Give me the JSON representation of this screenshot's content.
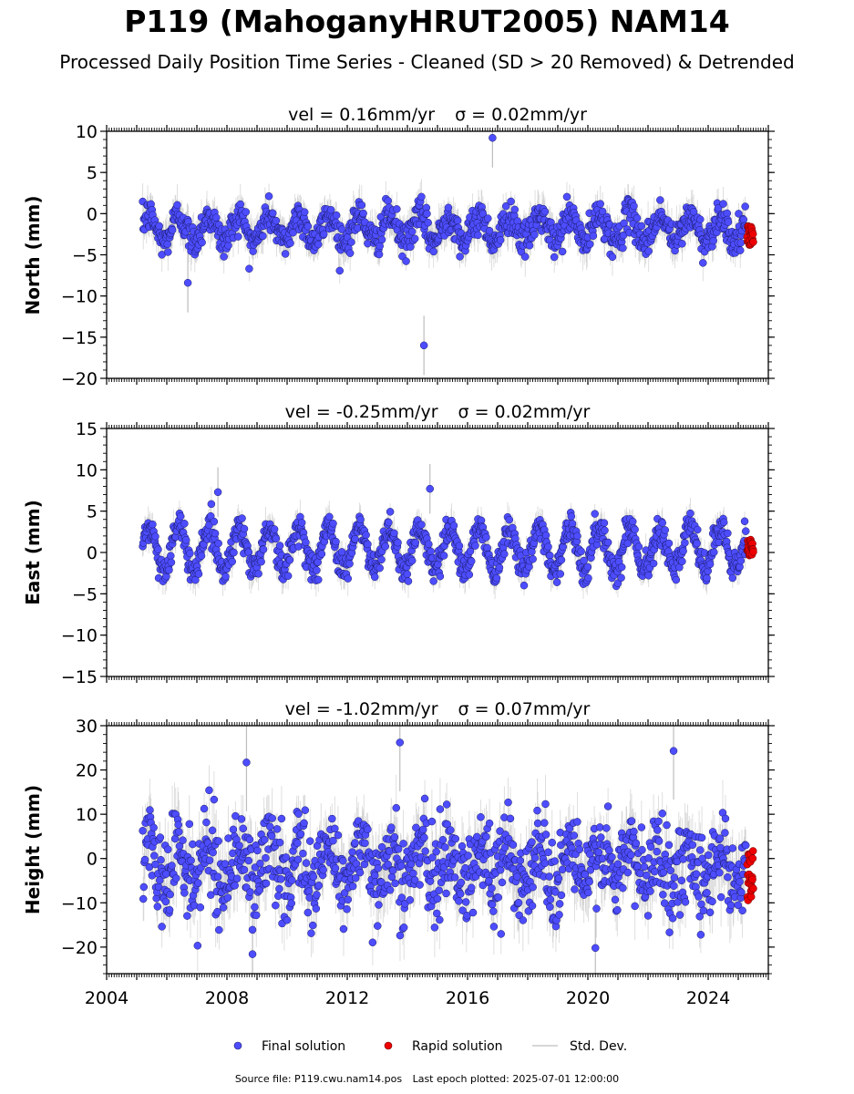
{
  "title": "P119 (MahoganyHRUT2005) NAM14",
  "subtitle": "Processed Daily Position Time Series - Cleaned (SD > 20 Removed) & Detrended",
  "footer": {
    "source": "Source file: P119.cwu.nam14.pos",
    "last_epoch": "Last epoch plotted: 2025-07-01 12:00:00"
  },
  "colors": {
    "final": "#4d4dff",
    "rapid": "#ee0000",
    "stddev": "#bdbdbd",
    "edge": "#1a1a66"
  },
  "chart_data": [
    {
      "type": "scatter",
      "panel": "north",
      "title_vel": "vel = 0.16mm/yr",
      "title_sigma": "σ = 0.02mm/yr",
      "ylabel": "North (mm)",
      "ylim": [
        -20,
        10
      ],
      "yticks": [
        10,
        5,
        0,
        -5,
        -10,
        -15,
        -20
      ],
      "xlim": [
        2004,
        2026
      ],
      "series": [
        {
          "name": "Final solution",
          "x_range": [
            2005.2,
            2025.25
          ],
          "mean": -1.8,
          "seasonal_amplitude": 1.6,
          "scatter": 1.0,
          "typical_sd": 1.8,
          "outliers": [
            {
              "x": 2016.83,
              "y": 9.2
            },
            {
              "x": 2014.55,
              "y": -16.0
            },
            {
              "x": 2006.7,
              "y": -8.4
            }
          ]
        },
        {
          "name": "Rapid solution",
          "x_range": [
            2025.3,
            2025.5
          ],
          "y_range": [
            -3.8,
            -1.4
          ]
        }
      ]
    },
    {
      "type": "scatter",
      "panel": "east",
      "title_vel": "vel = -0.25mm/yr",
      "title_sigma": "σ = 0.02mm/yr",
      "ylabel": "East (mm)",
      "ylim": [
        -15,
        15
      ],
      "yticks": [
        15,
        10,
        5,
        0,
        -5,
        -10,
        -15
      ],
      "xlim": [
        2004,
        2026
      ],
      "series": [
        {
          "name": "Final solution",
          "x_range": [
            2005.2,
            2025.25
          ],
          "mean": 0.5,
          "seasonal_amplitude": 2.6,
          "scatter": 0.9,
          "typical_sd": 1.5,
          "outliers": [
            {
              "x": 2014.75,
              "y": 7.7
            },
            {
              "x": 2007.7,
              "y": 7.3
            }
          ]
        },
        {
          "name": "Rapid solution",
          "x_range": [
            2025.3,
            2025.5
          ],
          "y_range": [
            -0.4,
            1.8
          ]
        }
      ]
    },
    {
      "type": "scatter",
      "panel": "height",
      "title_vel": "vel = -1.02mm/yr",
      "title_sigma": "σ = 0.07mm/yr",
      "ylabel": "Height (mm)",
      "ylim": [
        -26,
        30
      ],
      "yticks": [
        30,
        20,
        10,
        0,
        -10,
        -20
      ],
      "xlim": [
        2004,
        2026
      ],
      "xticks": [
        2004,
        2008,
        2012,
        2016,
        2020,
        2024
      ],
      "series": [
        {
          "name": "Final solution",
          "x_range": [
            2005.2,
            2025.25
          ],
          "mean": -1.5,
          "seasonal_amplitude": 4.5,
          "scatter": 5.0,
          "typical_sd": 5.5,
          "outliers": [
            {
              "x": 2013.75,
              "y": 26.2
            },
            {
              "x": 2022.85,
              "y": 24.3
            },
            {
              "x": 2008.65,
              "y": 21.7
            },
            {
              "x": 2008.85,
              "y": -21.6
            },
            {
              "x": 2020.25,
              "y": -20.2
            }
          ]
        },
        {
          "name": "Rapid solution",
          "x_range": [
            2025.3,
            2025.5
          ],
          "y_range": [
            -9.5,
            1.8
          ]
        }
      ]
    }
  ],
  "legend": {
    "final": "Final solution",
    "rapid": "Rapid solution",
    "std": "Std. Dev."
  }
}
